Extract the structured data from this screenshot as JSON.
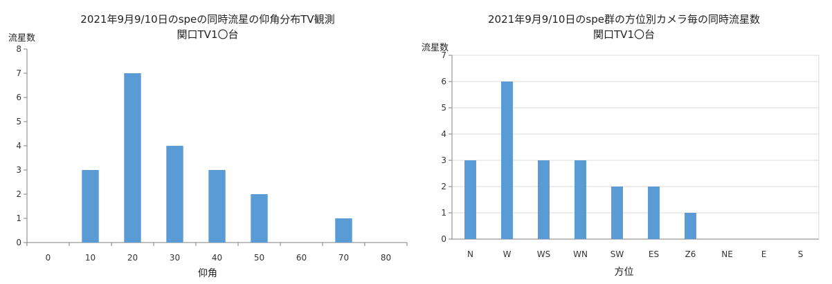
{
  "chart_data": [
    {
      "type": "bar",
      "title": "2021年9月9/10日のspeの同時流星の仰角分布TV観測",
      "subtitle": "関口TV1〇台",
      "ylabel": "流星数",
      "xlabel": "仰角",
      "categories": [
        "0",
        "10",
        "20",
        "30",
        "40",
        "50",
        "60",
        "70",
        "80"
      ],
      "values": [
        0,
        3,
        7,
        4,
        3,
        2,
        0,
        1,
        0
      ],
      "ylim": [
        0,
        8
      ],
      "yticks": [
        0,
        1,
        2,
        3,
        4,
        5,
        6,
        7,
        8
      ],
      "grid": false,
      "bar_color": "#5b9bd5"
    },
    {
      "type": "bar",
      "title": "2021年9月9/10日のspe群の方位別カメラ毎の同時流星数",
      "subtitle": "関口TV1〇台",
      "ylabel": "流星数",
      "xlabel": "方位",
      "categories": [
        "N",
        "W",
        "WS",
        "WN",
        "SW",
        "ES",
        "Z6",
        "NE",
        "E",
        "S"
      ],
      "values": [
        3,
        6,
        3,
        3,
        2,
        2,
        1,
        0,
        0,
        0
      ],
      "ylim": [
        0,
        7
      ],
      "yticks": [
        0,
        1,
        2,
        3,
        4,
        5,
        6,
        7
      ],
      "grid": true,
      "bar_color": "#5b9bd5"
    }
  ]
}
